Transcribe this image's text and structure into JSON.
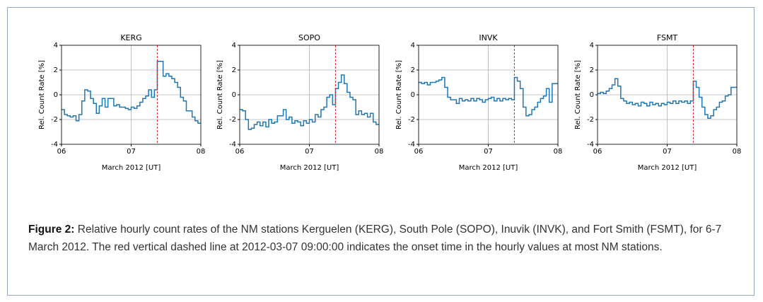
{
  "chart_data": [
    {
      "type": "step",
      "title": "KERG",
      "xlabel": "March 2012 [UT]",
      "ylabel": "Rel. Count Rate  [%]",
      "x": [
        0,
        1,
        2,
        3,
        4,
        5,
        6,
        7,
        8,
        9,
        10,
        11,
        12,
        13,
        14,
        15,
        16,
        17,
        18,
        19,
        20,
        21,
        22,
        23,
        24,
        25,
        26,
        27,
        28,
        29,
        30,
        31,
        32,
        33,
        34,
        35,
        36,
        37,
        38,
        39,
        40,
        41,
        42,
        43,
        44,
        45,
        46,
        47
      ],
      "series": [
        {
          "color": "#1f77b4",
          "values": [
            -1.2,
            -1.6,
            -1.7,
            -1.8,
            -1.7,
            -2.1,
            -1.6,
            -0.5,
            0.4,
            0.3,
            -0.3,
            -0.7,
            -1.5,
            -0.9,
            -0.3,
            -1.0,
            -0.3,
            -0.3,
            -0.9,
            -0.8,
            -1.0,
            -1.0,
            -1.1,
            -1.2,
            -1.0,
            -1.1,
            -0.9,
            -0.6,
            -0.3,
            -0.1,
            0.4,
            -0.2,
            0.4,
            2.7,
            2.7,
            1.5,
            1.7,
            1.5,
            1.3,
            1.0,
            0.6,
            -0.2,
            -0.5,
            -1.3,
            -1.3,
            -1.8,
            -2.1,
            -2.3
          ]
        }
      ],
      "xlim": [
        0,
        48
      ],
      "xticks": [
        {
          "value": 0,
          "label": "06"
        },
        {
          "value": 24,
          "label": "07"
        },
        {
          "value": 48,
          "label": "08"
        }
      ],
      "ylim": [
        -4,
        4
      ],
      "yticks": [
        -4,
        -2,
        0,
        2,
        4
      ],
      "grid": true,
      "vline": {
        "x": 33,
        "color": "#d62728"
      }
    },
    {
      "type": "step",
      "title": "SOPO",
      "xlabel": "March 2012 [UT]",
      "ylabel": "Rel. Count Rate  [%]",
      "x": [
        0,
        1,
        2,
        3,
        4,
        5,
        6,
        7,
        8,
        9,
        10,
        11,
        12,
        13,
        14,
        15,
        16,
        17,
        18,
        19,
        20,
        21,
        22,
        23,
        24,
        25,
        26,
        27,
        28,
        29,
        30,
        31,
        32,
        33,
        34,
        35,
        36,
        37,
        38,
        39,
        40,
        41,
        42,
        43,
        44,
        45,
        46,
        47
      ],
      "series": [
        {
          "color": "#1f77b4",
          "values": [
            -1.2,
            -1.3,
            -2.0,
            -2.8,
            -2.7,
            -2.4,
            -2.2,
            -2.5,
            -2.2,
            -2.6,
            -2.0,
            -2.3,
            -2.2,
            -1.7,
            -1.7,
            -1.2,
            -2.0,
            -1.8,
            -2.3,
            -2.1,
            -2.2,
            -2.5,
            -2.1,
            -2.3,
            -2.0,
            -2.2,
            -1.6,
            -1.8,
            -1.2,
            -1.0,
            -0.2,
            0.0,
            -0.8,
            0.5,
            1.0,
            1.6,
            0.9,
            0.2,
            -0.2,
            -0.4,
            -1.6,
            -1.3,
            -1.6,
            -1.5,
            -1.8,
            -1.5,
            -2.2,
            -2.4
          ]
        }
      ],
      "xlim": [
        0,
        48
      ],
      "xticks": [
        {
          "value": 0,
          "label": "06"
        },
        {
          "value": 24,
          "label": "07"
        },
        {
          "value": 48,
          "label": "08"
        }
      ],
      "ylim": [
        -4,
        4
      ],
      "yticks": [
        -4,
        -2,
        0,
        2,
        4
      ],
      "grid": true,
      "vline": {
        "x": 33,
        "color": "#d62728"
      }
    },
    {
      "type": "step",
      "title": "INVK",
      "xlabel": "March 2012 [UT]",
      "ylabel": "Rel. Count Rate  [%]",
      "x": [
        0,
        1,
        2,
        3,
        4,
        5,
        6,
        7,
        8,
        9,
        10,
        11,
        12,
        13,
        14,
        15,
        16,
        17,
        18,
        19,
        20,
        21,
        22,
        23,
        24,
        25,
        26,
        27,
        28,
        29,
        30,
        31,
        32,
        33,
        34,
        35,
        36,
        37,
        38,
        39,
        40,
        41,
        42,
        43,
        44,
        45,
        46,
        47
      ],
      "series": [
        {
          "color": "#1f77b4",
          "values": [
            1.0,
            0.9,
            1.0,
            0.8,
            1.0,
            1.0,
            1.1,
            1.2,
            1.4,
            0.6,
            -0.2,
            -0.4,
            -0.4,
            -0.7,
            -0.3,
            -0.5,
            -0.4,
            -0.5,
            -0.3,
            -0.5,
            -0.3,
            -0.4,
            -0.6,
            -0.4,
            -0.3,
            -0.2,
            -0.5,
            -0.3,
            -0.5,
            -0.3,
            -0.4,
            -0.3,
            -0.4,
            1.4,
            1.1,
            0.5,
            -1.0,
            -1.7,
            -1.6,
            -1.2,
            -1.0,
            -0.6,
            -0.3,
            -0.1,
            0.5,
            -0.6,
            0.9,
            0.9
          ]
        }
      ],
      "xlim": [
        0,
        48
      ],
      "xticks": [
        {
          "value": 0,
          "label": "06"
        },
        {
          "value": 24,
          "label": "07"
        },
        {
          "value": 48,
          "label": "08"
        }
      ],
      "ylim": [
        -4,
        4
      ],
      "yticks": [
        -4,
        -2,
        0,
        2,
        4
      ],
      "grid": true,
      "vline": {
        "x": 33,
        "color": "#d62728"
      }
    },
    {
      "type": "step",
      "title": "FSMT",
      "xlabel": "March 2012 [UT]",
      "ylabel": "Rel. Count Rate  [%]",
      "x": [
        0,
        1,
        2,
        3,
        4,
        5,
        6,
        7,
        8,
        9,
        10,
        11,
        12,
        13,
        14,
        15,
        16,
        17,
        18,
        19,
        20,
        21,
        22,
        23,
        24,
        25,
        26,
        27,
        28,
        29,
        30,
        31,
        32,
        33,
        34,
        35,
        36,
        37,
        38,
        39,
        40,
        41,
        42,
        43,
        44,
        45,
        46,
        47
      ],
      "series": [
        {
          "color": "#1f77b4",
          "values": [
            0.1,
            0.2,
            0.1,
            0.3,
            0.5,
            0.8,
            1.3,
            0.7,
            -0.3,
            -0.5,
            -0.7,
            -0.6,
            -0.8,
            -0.7,
            -0.9,
            -0.6,
            -0.7,
            -0.9,
            -0.6,
            -0.8,
            -0.7,
            -0.9,
            -0.7,
            -0.8,
            -0.6,
            -0.7,
            -0.5,
            -0.7,
            -0.5,
            -0.6,
            -0.5,
            -0.7,
            -0.5,
            1.1,
            0.6,
            -0.2,
            -1.0,
            -1.6,
            -1.9,
            -1.7,
            -1.2,
            -1.0,
            -0.6,
            -0.5,
            -0.1,
            0.0,
            0.6,
            0.6
          ]
        }
      ],
      "xlim": [
        0,
        48
      ],
      "xticks": [
        {
          "value": 0,
          "label": "06"
        },
        {
          "value": 24,
          "label": "07"
        },
        {
          "value": 48,
          "label": "08"
        }
      ],
      "ylim": [
        -4,
        4
      ],
      "yticks": [
        -4,
        -2,
        0,
        2,
        4
      ],
      "grid": true,
      "vline": {
        "x": 33,
        "color": "#d62728"
      }
    }
  ],
  "caption": {
    "label": "Figure 2:",
    "text": "Relative hourly count rates of the NM stations Kerguelen (KERG), South Pole (SOPO), Inuvik (INVK), and Fort Smith (FSMT), for 6-7 March 2012. The red vertical dashed line at 2012-03-07 09:00:00 indicates the onset time in the hourly values at most NM stations."
  }
}
